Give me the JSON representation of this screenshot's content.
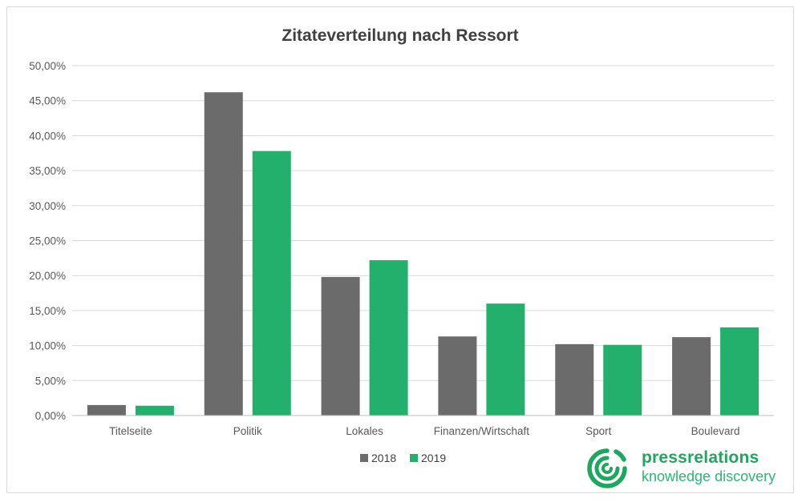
{
  "chart_data": {
    "type": "bar",
    "title": "Zitateverteilung nach Ressort",
    "categories": [
      "Titelseite",
      "Politik",
      "Lokales",
      "Finanzen/Wirtschaft",
      "Sport",
      "Boulevard"
    ],
    "series": [
      {
        "name": "2018",
        "color": "#6b6b6b",
        "values": [
          1.5,
          46.2,
          19.8,
          11.3,
          10.2,
          11.2
        ]
      },
      {
        "name": "2019",
        "color": "#23b06c",
        "values": [
          1.4,
          37.8,
          22.2,
          16.0,
          10.1,
          12.6
        ]
      }
    ],
    "yticks": [
      "0,00%",
      "5,00%",
      "10,00%",
      "15,00%",
      "20,00%",
      "25,00%",
      "30,00%",
      "35,00%",
      "40,00%",
      "45,00%",
      "50,00%"
    ],
    "ylim": [
      0,
      50
    ],
    "xlabel": "",
    "ylabel": "",
    "grid": true,
    "legend": "bottom"
  },
  "branding": {
    "name": "pressrelations",
    "tagline": "knowledge discovery",
    "color": "#1ea760",
    "icon": "pressrelations-logo-icon"
  }
}
